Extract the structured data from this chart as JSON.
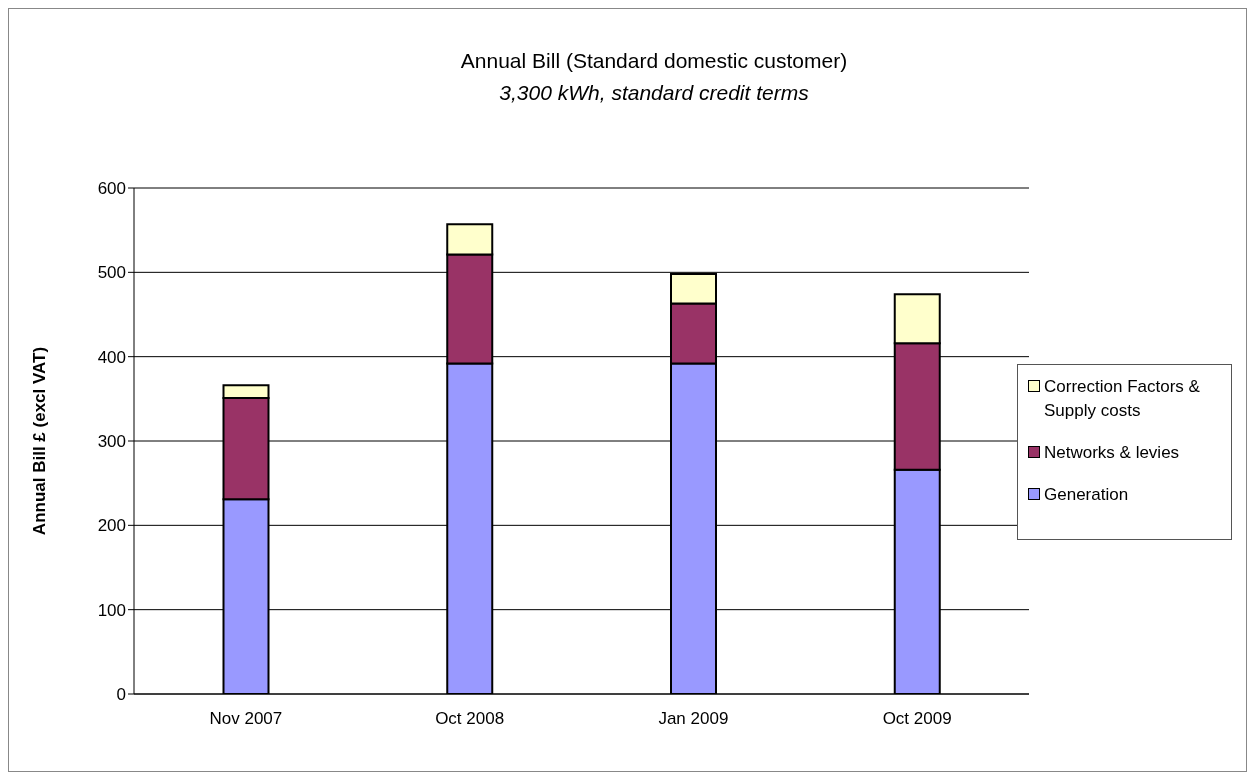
{
  "chart_data": {
    "type": "bar",
    "title": "Annual Bill (Standard domestic customer)",
    "subtitle": "3,300 kWh, standard credit terms",
    "ylabel": "Annual Bill £ (excl VAT)",
    "categories": [
      "Nov 2007",
      "Oct 2008",
      "Jan 2009",
      "Oct 2009"
    ],
    "stacked": true,
    "series": [
      {
        "name": "Generation",
        "color": "#9999ff",
        "values": [
          231,
          392,
          392,
          266
        ]
      },
      {
        "name": "Networks & levies",
        "color": "#993366",
        "values": [
          120,
          129,
          71,
          150
        ]
      },
      {
        "name": "Correction Factors & Supply costs",
        "color": "#ffffcc",
        "values": [
          15,
          36,
          35,
          58
        ]
      }
    ],
    "ylim": [
      0,
      600
    ],
    "yticks": [
      0,
      100,
      200,
      300,
      400,
      500,
      600
    ],
    "grid": "y",
    "legend": "right"
  }
}
